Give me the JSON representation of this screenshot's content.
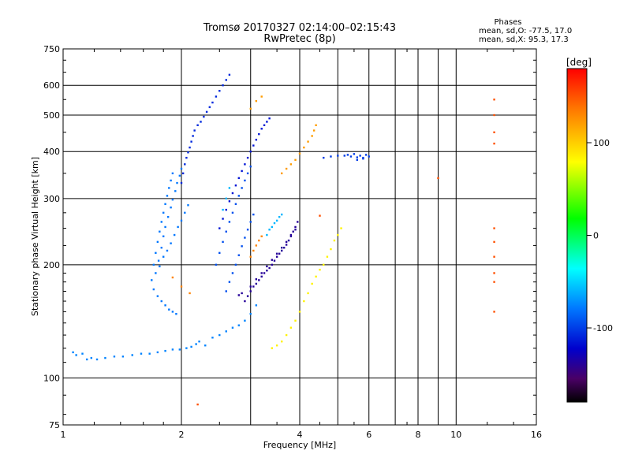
{
  "chart_data": {
    "type": "scatter",
    "title": "Tromsø 20170327 02:14:00–02:15:43",
    "subtitle": "RwPretec (8p)",
    "xlabel": "Frequency [MHz]",
    "ylabel": "Stationary phase Virtual Height [km]",
    "x_scale": "log",
    "y_scale": "log",
    "xlim": [
      1,
      16
    ],
    "ylim": [
      75,
      750
    ],
    "x_ticks": [
      1,
      2,
      4,
      6,
      8,
      10,
      16
    ],
    "x_minor_lines": [
      3,
      5,
      7,
      9
    ],
    "y_ticks": [
      75,
      100,
      200,
      300,
      400,
      500,
      600,
      750
    ],
    "grid": true,
    "phase_box": {
      "heading": "Phases",
      "line1": "mean, sd,O: -77.5, 17.0",
      "line2": "mean, sd,X: 95.3, 17.3"
    },
    "colorbar": {
      "label": "[deg]",
      "range": [
        -180,
        180
      ],
      "ticks": [
        100,
        0,
        -100
      ]
    },
    "series": [
      {
        "phase": -90,
        "points": [
          [
            1.06,
            117
          ],
          [
            1.08,
            115
          ],
          [
            1.12,
            116
          ],
          [
            1.15,
            112
          ],
          [
            1.18,
            113
          ],
          [
            1.22,
            112
          ],
          [
            1.28,
            113
          ],
          [
            1.35,
            114
          ],
          [
            1.42,
            114
          ],
          [
            1.5,
            115
          ],
          [
            1.58,
            116
          ],
          [
            1.66,
            116
          ],
          [
            1.74,
            117
          ],
          [
            1.82,
            118
          ],
          [
            1.9,
            119
          ],
          [
            1.98,
            119
          ],
          [
            2.06,
            120
          ],
          [
            2.12,
            121
          ],
          [
            2.18,
            123
          ],
          [
            2.22,
            125
          ],
          [
            2.3,
            122
          ],
          [
            2.4,
            128
          ],
          [
            2.5,
            130
          ],
          [
            2.6,
            133
          ],
          [
            2.7,
            136
          ],
          [
            2.8,
            138
          ],
          [
            2.9,
            142
          ],
          [
            3.0,
            148
          ],
          [
            3.1,
            156
          ]
        ]
      },
      {
        "phase": -95,
        "points": [
          [
            1.7,
            200
          ],
          [
            1.72,
            215
          ],
          [
            1.74,
            230
          ],
          [
            1.76,
            245
          ],
          [
            1.78,
            260
          ],
          [
            1.8,
            275
          ],
          [
            1.82,
            290
          ],
          [
            1.84,
            305
          ],
          [
            1.86,
            320
          ],
          [
            1.88,
            335
          ],
          [
            1.9,
            350
          ],
          [
            1.75,
            205
          ],
          [
            1.78,
            222
          ],
          [
            1.8,
            238
          ],
          [
            1.82,
            252
          ],
          [
            1.85,
            268
          ],
          [
            1.88,
            284
          ],
          [
            1.9,
            298
          ],
          [
            1.93,
            314
          ],
          [
            1.95,
            330
          ],
          [
            1.98,
            345
          ],
          [
            2.0,
            360
          ],
          [
            1.72,
            190
          ],
          [
            1.76,
            198
          ],
          [
            1.8,
            210
          ],
          [
            1.84,
            218
          ],
          [
            1.88,
            228
          ],
          [
            1.92,
            240
          ],
          [
            1.96,
            252
          ],
          [
            2.0,
            262
          ],
          [
            2.04,
            275
          ],
          [
            2.08,
            288
          ],
          [
            1.68,
            182
          ],
          [
            1.7,
            172
          ],
          [
            1.74,
            165
          ],
          [
            1.78,
            160
          ],
          [
            1.82,
            156
          ],
          [
            1.86,
            152
          ],
          [
            1.9,
            150
          ],
          [
            1.94,
            148
          ]
        ]
      },
      {
        "phase": -115,
        "points": [
          [
            2.0,
            330
          ],
          [
            2.02,
            350
          ],
          [
            2.04,
            370
          ],
          [
            2.06,
            385
          ],
          [
            2.08,
            398
          ],
          [
            2.1,
            410
          ],
          [
            2.12,
            425
          ],
          [
            2.14,
            440
          ],
          [
            2.16,
            455
          ],
          [
            2.2,
            470
          ],
          [
            2.24,
            480
          ],
          [
            2.28,
            495
          ],
          [
            2.32,
            510
          ],
          [
            2.36,
            525
          ],
          [
            2.4,
            540
          ],
          [
            2.45,
            560
          ],
          [
            2.5,
            580
          ],
          [
            2.55,
            600
          ],
          [
            2.6,
            620
          ],
          [
            2.65,
            640
          ]
        ]
      },
      {
        "phase": -120,
        "points": [
          [
            2.5,
            250
          ],
          [
            2.55,
            265
          ],
          [
            2.6,
            280
          ],
          [
            2.65,
            295
          ],
          [
            2.7,
            310
          ],
          [
            2.75,
            325
          ],
          [
            2.8,
            340
          ],
          [
            2.85,
            355
          ],
          [
            2.9,
            370
          ],
          [
            2.95,
            385
          ],
          [
            3.0,
            400
          ],
          [
            3.05,
            415
          ],
          [
            3.1,
            430
          ],
          [
            3.15,
            445
          ],
          [
            3.2,
            460
          ],
          [
            3.25,
            470
          ],
          [
            3.3,
            480
          ],
          [
            3.35,
            490
          ]
        ]
      },
      {
        "phase": -105,
        "points": [
          [
            2.45,
            200
          ],
          [
            2.5,
            215
          ],
          [
            2.55,
            230
          ],
          [
            2.6,
            245
          ],
          [
            2.65,
            260
          ],
          [
            2.7,
            275
          ],
          [
            2.75,
            290
          ],
          [
            2.8,
            305
          ],
          [
            2.85,
            320
          ],
          [
            2.9,
            335
          ],
          [
            2.95,
            350
          ],
          [
            3.0,
            365
          ],
          [
            2.6,
            170
          ],
          [
            2.65,
            180
          ],
          [
            2.7,
            190
          ],
          [
            2.75,
            200
          ],
          [
            2.8,
            212
          ],
          [
            2.85,
            224
          ],
          [
            2.9,
            236
          ],
          [
            2.95,
            248
          ],
          [
            3.0,
            260
          ],
          [
            3.05,
            272
          ]
        ]
      },
      {
        "phase": -140,
        "points": [
          [
            2.9,
            160
          ],
          [
            2.95,
            165
          ],
          [
            3.0,
            170
          ],
          [
            3.05,
            175
          ],
          [
            3.1,
            178
          ],
          [
            3.15,
            182
          ],
          [
            3.2,
            186
          ],
          [
            3.25,
            190
          ],
          [
            3.3,
            193
          ],
          [
            3.35,
            196
          ],
          [
            3.4,
            200
          ],
          [
            3.45,
            205
          ],
          [
            3.5,
            210
          ],
          [
            3.55,
            214
          ],
          [
            3.6,
            218
          ],
          [
            3.65,
            222
          ],
          [
            3.7,
            226
          ],
          [
            3.75,
            232
          ],
          [
            3.8,
            238
          ],
          [
            3.85,
            245
          ],
          [
            3.9,
            252
          ],
          [
            3.95,
            260
          ],
          [
            2.8,
            166
          ],
          [
            2.85,
            168
          ],
          [
            3.0,
            175
          ],
          [
            3.1,
            183
          ],
          [
            3.2,
            190
          ],
          [
            3.3,
            198
          ],
          [
            3.4,
            206
          ],
          [
            3.5,
            214
          ],
          [
            3.6,
            222
          ],
          [
            3.7,
            230
          ],
          [
            3.8,
            240
          ],
          [
            3.9,
            248
          ]
        ]
      },
      {
        "phase": -110,
        "points": [
          [
            4.6,
            385
          ],
          [
            4.8,
            388
          ],
          [
            5.0,
            390
          ],
          [
            5.2,
            390
          ],
          [
            5.4,
            388
          ],
          [
            5.6,
            386
          ],
          [
            5.8,
            385
          ],
          [
            6.0,
            388
          ],
          [
            5.3,
            392
          ],
          [
            5.5,
            394
          ],
          [
            5.7,
            390
          ],
          [
            5.9,
            392
          ],
          [
            5.6,
            380
          ],
          [
            5.8,
            383
          ]
        ]
      },
      {
        "phase": -70,
        "points": [
          [
            3.3,
            240
          ],
          [
            3.35,
            248
          ],
          [
            3.4,
            252
          ],
          [
            3.45,
            258
          ],
          [
            3.5,
            262
          ],
          [
            3.55,
            268
          ],
          [
            3.6,
            272
          ],
          [
            2.55,
            280
          ],
          [
            2.6,
            300
          ],
          [
            2.65,
            320
          ]
        ]
      },
      {
        "phase": 85,
        "points": [
          [
            3.4,
            120
          ],
          [
            3.5,
            122
          ],
          [
            3.6,
            125
          ],
          [
            3.7,
            130
          ],
          [
            3.8,
            136
          ],
          [
            3.9,
            142
          ],
          [
            4.0,
            150
          ],
          [
            4.1,
            160
          ],
          [
            4.2,
            168
          ],
          [
            4.3,
            178
          ],
          [
            4.4,
            186
          ],
          [
            4.5,
            194
          ],
          [
            4.6,
            200
          ],
          [
            4.7,
            210
          ],
          [
            4.8,
            220
          ],
          [
            4.9,
            232
          ],
          [
            5.0,
            240
          ],
          [
            5.1,
            250
          ]
        ]
      },
      {
        "phase": 120,
        "points": [
          [
            3.6,
            350
          ],
          [
            3.7,
            360
          ],
          [
            3.8,
            370
          ],
          [
            3.9,
            380
          ],
          [
            4.0,
            395
          ],
          [
            4.1,
            410
          ],
          [
            4.2,
            425
          ],
          [
            4.3,
            440
          ],
          [
            4.35,
            455
          ],
          [
            4.4,
            470
          ],
          [
            3.0,
            520
          ],
          [
            3.1,
            545
          ],
          [
            3.2,
            560
          ]
        ]
      },
      {
        "phase": 130,
        "points": [
          [
            3.0,
            210
          ],
          [
            3.05,
            218
          ],
          [
            3.1,
            225
          ],
          [
            3.15,
            232
          ],
          [
            3.2,
            238
          ],
          [
            1.9,
            185
          ],
          [
            2.0,
            175
          ],
          [
            2.1,
            168
          ]
        ]
      },
      {
        "phase": 150,
        "points": [
          [
            12.5,
            550
          ],
          [
            12.5,
            500
          ],
          [
            12.5,
            450
          ],
          [
            12.5,
            420
          ],
          [
            12.5,
            250
          ],
          [
            12.5,
            230
          ],
          [
            12.5,
            210
          ],
          [
            12.5,
            190
          ],
          [
            12.5,
            180
          ],
          [
            12.5,
            150
          ],
          [
            9.0,
            340
          ],
          [
            4.5,
            270
          ],
          [
            2.2,
            85
          ]
        ]
      }
    ]
  }
}
